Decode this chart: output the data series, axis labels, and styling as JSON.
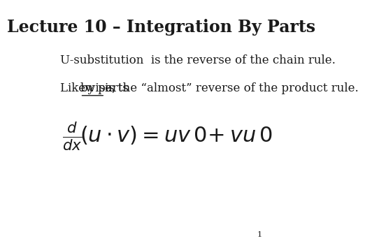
{
  "title": "Lecture 10 – Integration By Parts",
  "line1": "U-substitution  is the reverse of the chain rule.",
  "line2_before_underline": "Likewise, ",
  "line2_underlined": "by parts ",
  "line2_after_underline": "is the “almost” reverse of the product rule.",
  "page_number": "1",
  "background_color": "#ffffff",
  "text_color": "#1a1a1a",
  "title_fontsize": 17,
  "body_fontsize": 12,
  "math_fontsize": 22
}
